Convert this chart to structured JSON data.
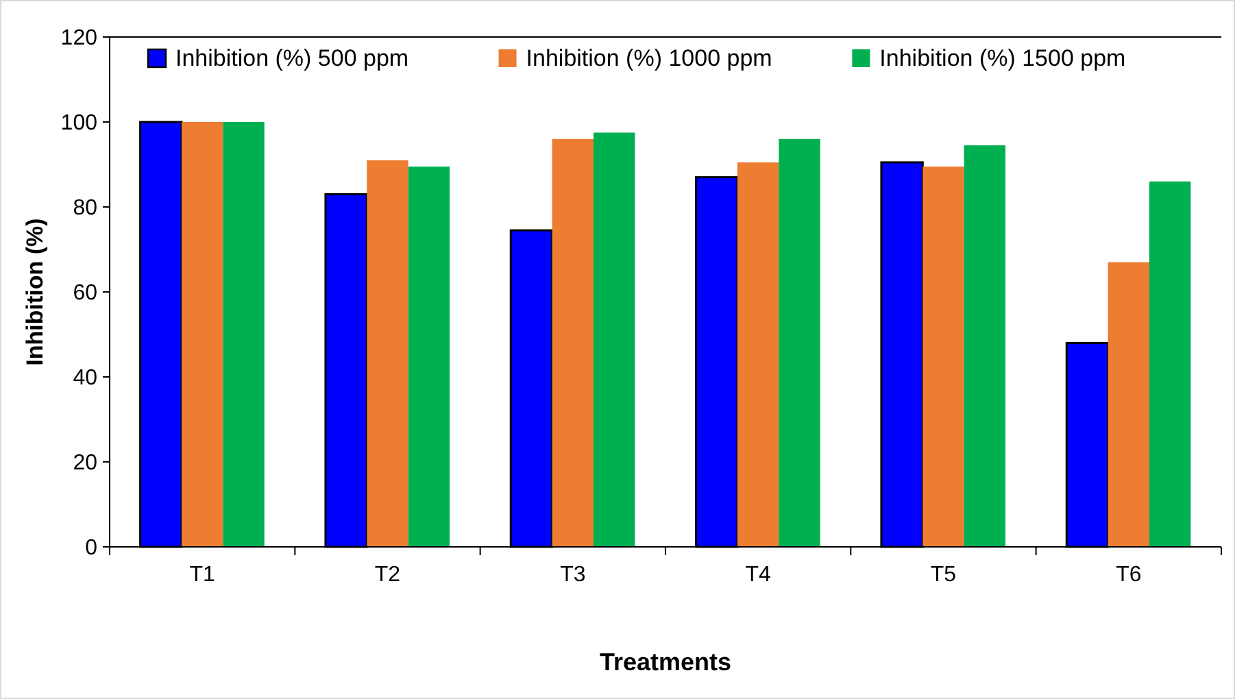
{
  "chart_data": {
    "type": "bar",
    "xlabel": "Treatments",
    "ylabel": "Inhibition (%)",
    "categories": [
      "T1",
      "T2",
      "T3",
      "T4",
      "T5",
      "T6"
    ],
    "series": [
      {
        "name": "Inhibition  (%) 500 ppm",
        "color": "#0000ff",
        "values": [
          100,
          83,
          74.5,
          87,
          90.5,
          48
        ]
      },
      {
        "name": "Inhibition  (%) 1000 ppm",
        "color": "#ed7d31",
        "values": [
          100,
          91,
          96,
          90.5,
          89.5,
          67
        ]
      },
      {
        "name": "Inhibition  (%) 1500 ppm",
        "color": "#00b050",
        "values": [
          100,
          89.5,
          97.5,
          96,
          94.5,
          86
        ]
      }
    ],
    "ylim": [
      0,
      120
    ],
    "yticks": [
      0,
      20,
      40,
      60,
      80,
      100,
      120
    ],
    "grid": false,
    "legend": "top"
  }
}
